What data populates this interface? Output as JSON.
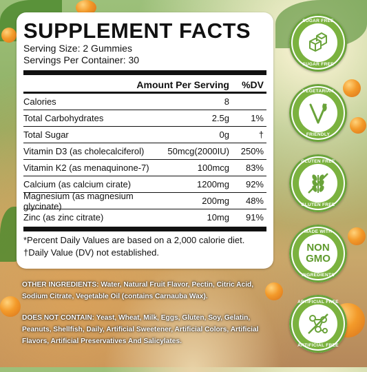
{
  "title": "SUPPLEMENT FACTS",
  "serving_size": "Serving Size: 2 Gummies",
  "servings_per_container": "Servings Per Container: 30",
  "header": {
    "amount": "Amount Per Serving",
    "dv": "%DV"
  },
  "rows": [
    {
      "name": "Calories",
      "amount": "8",
      "dv": ""
    },
    {
      "name": "Total Carbohydrates",
      "amount": "2.5g",
      "dv": "1%"
    },
    {
      "name": "Total Sugar",
      "amount": "0g",
      "dv": "†"
    },
    {
      "name": "Vitamin D3 (as cholecalciferol)",
      "amount": "50mcg(2000IU)",
      "dv": "250%"
    },
    {
      "name": "Vitamin K2 (as menaquinone-7)",
      "amount": "100mcg",
      "dv": "83%"
    },
    {
      "name": "Calcium (as calcium cirate)",
      "amount": "1200mg",
      "dv": "92%"
    },
    {
      "name": "Magnesium (as magnesium glycinate)",
      "amount": "200mg",
      "dv": "48%"
    },
    {
      "name": "Zinc (as zinc citrate)",
      "amount": "10mg",
      "dv": "91%"
    }
  ],
  "notes": [
    "*Percent Daily Values are based on a 2,000 calorie diet.",
    "†Daily Value (DV) not established."
  ],
  "other_ingredients": {
    "label": "OTHER INGREDIENTS:",
    "text": "Water, Natural Fruit Flavor, Pectin, Citric Acid, Sodium Citrate, Vegetable Oil (contains Carnauba Wax)."
  },
  "does_not_contain": {
    "label": "DOES NOT CONTAIN:",
    "text": "Yeast, Wheat, Milk, Eggs, Gluten, Soy, Gelatin, Peanuts, Shellfish, Daily, Artificial Sweetener, Artificial Colors, Artificial Flavors, Artificial Preservatives And Salicylates."
  },
  "badges": [
    {
      "top": "SUGAR FREE",
      "bottom": "SUGAR FREE",
      "icon": "sugar-cubes-icon"
    },
    {
      "top": "VEGETARIAN",
      "bottom": "FRIENDLY",
      "icon": "vegetarian-v-icon"
    },
    {
      "top": "GLUTEN FREE",
      "bottom": "GLUTEN FREE",
      "icon": "wheat-icon"
    },
    {
      "top": "MADE WITH",
      "bottom": "INGREDIENTS",
      "center1": "NON",
      "center2": "GMO",
      "icon": "non-gmo-icon"
    },
    {
      "top": "ARTIFICIAL FREE",
      "bottom": "ARTIFICIAL FREE",
      "icon": "molecule-icon"
    }
  ],
  "colors": {
    "badge_green": "#7bb23f",
    "text_dark": "#111111"
  }
}
